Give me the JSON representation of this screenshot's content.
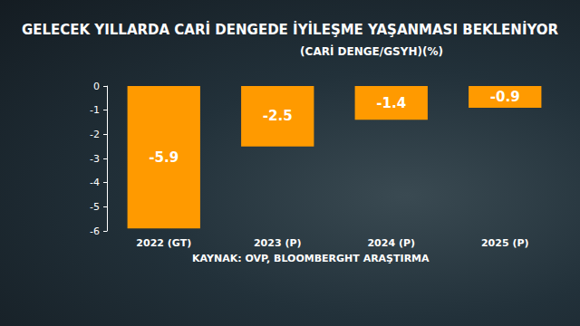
{
  "chart_data": {
    "type": "bar",
    "title": "GELECEK YILLARDA CARİ DENGEDE İYİLEŞME YAŞANMASI BEKLENİYOR",
    "subtitle": "(CARİ DENGE/GSYH)(%)",
    "annotations": [
      "KAYNAK: OVP, BLOOMBERGHT ARAŞTIRMA"
    ],
    "categories": [
      "2022 (GT)",
      "2023 (P)",
      "2024 (P)",
      "2025 (P)"
    ],
    "values": [
      -5.9,
      -2.5,
      -1.4,
      -0.9
    ],
    "color": "#ff9a00",
    "ylim": [
      -6,
      0
    ],
    "yticks": [
      -6,
      -5,
      -4,
      -3,
      -2,
      -1,
      0
    ],
    "grid": false,
    "data_labels": true
  }
}
